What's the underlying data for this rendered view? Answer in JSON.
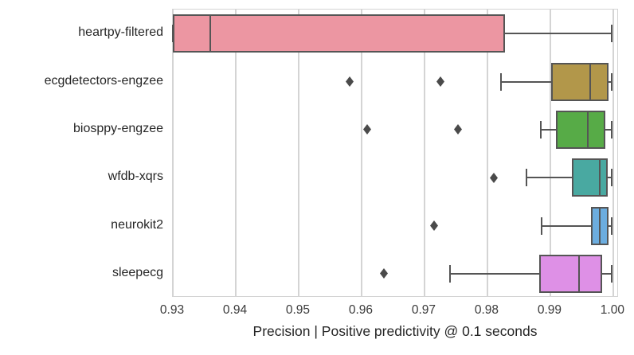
{
  "chart_data": {
    "type": "boxplot",
    "orientation": "horizontal",
    "title": "",
    "xlabel": "Precision | Positive predictivity @ 0.1 seconds",
    "ylabel": "",
    "xlim": [
      0.93,
      1.0009
    ],
    "grid": "vertical-only",
    "legend": "none",
    "x_ticks": [
      {
        "value": 0.93,
        "label": "0.93"
      },
      {
        "value": 0.94,
        "label": "0.94"
      },
      {
        "value": 0.95,
        "label": "0.95"
      },
      {
        "value": 0.96,
        "label": "0.96"
      },
      {
        "value": 0.97,
        "label": "0.97"
      },
      {
        "value": 0.98,
        "label": "0.98"
      },
      {
        "value": 0.99,
        "label": "0.99"
      },
      {
        "value": 1.0,
        "label": "1.00"
      }
    ],
    "categories": [
      "heartpy-filtered",
      "ecgdetectors-engzee",
      "biosppy-engzee",
      "wfdb-xqrs",
      "neurokit2",
      "sleepecg"
    ],
    "series": [
      {
        "name": "heartpy-filtered",
        "color": "#ec96a2",
        "whislo": 0.93,
        "q1": 0.93,
        "med": 0.936,
        "q3": 0.9828,
        "whishi": 0.9997,
        "fliers": []
      },
      {
        "name": "ecgdetectors-engzee",
        "color": "#b2974a",
        "whislo": 0.9822,
        "q1": 0.9901,
        "med": 0.9963,
        "q3": 0.9993,
        "whishi": 0.9997,
        "fliers": [
          0.9581,
          0.9725
        ]
      },
      {
        "name": "biosppy-engzee",
        "color": "#57ab47",
        "whislo": 0.9885,
        "q1": 0.9909,
        "med": 0.9959,
        "q3": 0.9988,
        "whishi": 0.9997,
        "fliers": [
          0.9609,
          0.9753
        ]
      },
      {
        "name": "wfdb-xqrs",
        "color": "#49a9a1",
        "whislo": 0.9862,
        "q1": 0.9934,
        "med": 0.9979,
        "q3": 0.9991,
        "whishi": 0.9997,
        "fliers": [
          0.981
        ]
      },
      {
        "name": "neurokit2",
        "color": "#6caddf",
        "whislo": 0.9886,
        "q1": 0.9965,
        "med": 0.9978,
        "q3": 0.9993,
        "whishi": 0.9997,
        "fliers": [
          0.9715
        ]
      },
      {
        "name": "sleepecg",
        "color": "#de90e6",
        "whislo": 0.974,
        "q1": 0.9882,
        "med": 0.9946,
        "q3": 0.9982,
        "whishi": 0.9997,
        "fliers": [
          0.9635
        ]
      }
    ],
    "style_colors": {
      "box_edge": "#555555",
      "whisker": "#555555",
      "median": "#555555",
      "flier": "#4a4a4a",
      "grid": "#d4d4d4",
      "background": "#ffffff"
    }
  }
}
